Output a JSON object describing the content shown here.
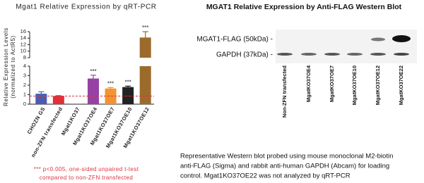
{
  "chart_data": {
    "type": "broken_bar",
    "title": "Mgat1 Relative Expression by qRT-PCR",
    "ylabel": [
      "Relative Expression Levels",
      "(normalized to ActR5)"
    ],
    "categories": [
      "CHOZN GS",
      "non-ZFN transfected",
      "Mgat1KO37",
      "Mgat1KO37OE4",
      "Mgat1KO37OE7",
      "Mgat1KO37OE10",
      "Mgat1KO37OE12"
    ],
    "values": [
      1.1,
      0.85,
      0.02,
      2.7,
      1.65,
      1.8,
      14.2
    ],
    "errors": [
      0.2,
      0.05,
      0,
      0.35,
      0.1,
      0.1,
      1.8
    ],
    "colors": [
      "#4a5cb0",
      "#e0313b",
      "#444444",
      "#9642a3",
      "#f39332",
      "#222222",
      "#9c6b2c"
    ],
    "annotations": [
      null,
      null,
      null,
      "***",
      "***",
      "***",
      "***"
    ],
    "reference_color": "#e0313b",
    "ylim_lower": [
      0,
      4
    ],
    "yticks_lower": [
      0,
      1,
      2,
      3,
      4
    ],
    "ylim_upper": [
      8,
      16
    ],
    "yticks_upper": [
      8,
      10,
      12,
      14,
      16
    ],
    "footnote": [
      "*** p<0.005, one-sided unpaired t-test",
      "compared to non-ZFN transfected"
    ]
  },
  "blot": {
    "title": "MGAT1 Relative Expression by Anti-FLAG Western Blot",
    "rows": [
      "MGAT1-FLAG (50kDa) -",
      "GAPDH (37kDa) -"
    ],
    "lanes": [
      "Non-ZFN transfected",
      "MgatKO37OE4",
      "MgatKO37OE7",
      "MgatKO37OE10",
      "MgatKO37OE12",
      "MgatKO37OE22"
    ],
    "caption": [
      "Representative Western blot probed using mouse monoclonal M2-biotin",
      "anti-FLAG (Sigma) and rabbit anti-human GAPDH (Abcam) for loading",
      "control. Mgat1KO37OE22 was not analyzed by qRT-PCR"
    ]
  }
}
